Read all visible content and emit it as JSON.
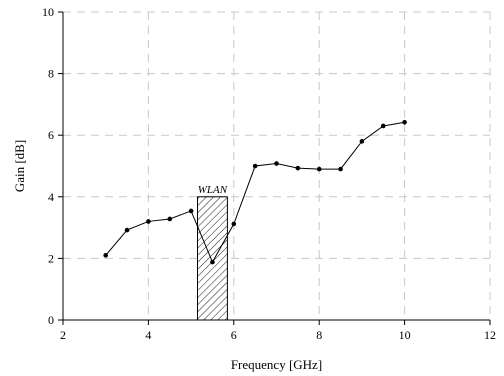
{
  "chart_data": {
    "type": "line",
    "xlabel": "Frequency [GHz]",
    "ylabel": "Gain [dB]",
    "xlim": [
      2,
      12
    ],
    "ylim": [
      0,
      10
    ],
    "xticks": [
      "2",
      "4",
      "6",
      "8",
      "10",
      "12"
    ],
    "yticks": [
      "0",
      "2",
      "4",
      "6",
      "8",
      "10"
    ],
    "grid": true,
    "series": [
      {
        "x": [
          3.0,
          3.5,
          4.0,
          4.5,
          5.0,
          5.5,
          6.0,
          6.5,
          7.0,
          7.5,
          8.0,
          8.5,
          9.0,
          9.5,
          10.0
        ],
        "y": [
          2.1,
          2.92,
          3.2,
          3.28,
          3.54,
          1.88,
          3.12,
          5.0,
          5.08,
          4.93,
          4.9,
          4.9,
          5.8,
          6.3,
          6.42
        ]
      }
    ],
    "annotations": [
      {
        "type": "hatched-band",
        "label": "WLAN",
        "x_range": [
          5.15,
          5.85
        ],
        "y_top": 4.0
      }
    ]
  }
}
